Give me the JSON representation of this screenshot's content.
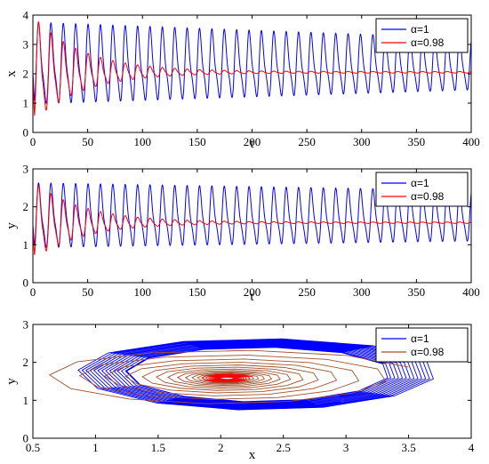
{
  "chart_data": [
    {
      "type": "line",
      "xlabel": "t",
      "ylabel": "x",
      "xlim": [
        0,
        400
      ],
      "ylim": [
        0,
        4
      ],
      "xticks": [
        0,
        50,
        100,
        150,
        200,
        250,
        300,
        350,
        400
      ],
      "yticks": [
        0,
        1,
        2,
        3,
        4
      ],
      "xtick_labels": [
        "0",
        "50",
        "100",
        "150",
        "200",
        "250",
        "300",
        "350",
        "400"
      ],
      "ytick_labels": [
        "0",
        "1",
        "2",
        "3",
        "4"
      ],
      "legend_position": "top-right",
      "series": [
        {
          "name": "α=1",
          "color": "#0000ff",
          "model": "sustained-oscillation",
          "period": 11.3,
          "center": 2.27,
          "amplitude_start": 1.5,
          "amplitude_end": 0.95,
          "start_value": 2.0
        },
        {
          "name": "α=0.98",
          "color": "#ff0000",
          "model": "damped-oscillation",
          "period": 11.3,
          "center": 2.05,
          "amplitude_start": 1.95,
          "decay_time": 45,
          "residual_amplitude": 0.03,
          "start_value": 2.0
        }
      ]
    },
    {
      "type": "line",
      "xlabel": "t",
      "ylabel": "y",
      "xlim": [
        0,
        400
      ],
      "ylim": [
        0,
        3
      ],
      "xticks": [
        0,
        50,
        100,
        150,
        200,
        250,
        300,
        350,
        400
      ],
      "yticks": [
        0,
        1,
        2,
        3
      ],
      "xtick_labels": [
        "0",
        "50",
        "100",
        "150",
        "200",
        "250",
        "300",
        "350",
        "400"
      ],
      "ytick_labels": [
        "0",
        "1",
        "2",
        "3"
      ],
      "legend_position": "top-right",
      "series": [
        {
          "name": "α=1",
          "color": "#0000ff",
          "model": "sustained-oscillation",
          "period": 11.3,
          "center": 1.72,
          "amplitude_start": 0.92,
          "amplitude_end": 0.72,
          "start_value": 1.5
        },
        {
          "name": "α=0.98",
          "color": "#ff0000",
          "model": "damped-oscillation",
          "period": 11.3,
          "center": 1.58,
          "amplitude_start": 1.12,
          "decay_time": 45,
          "residual_amplitude": 0.02,
          "start_value": 1.5
        }
      ]
    },
    {
      "type": "line",
      "xlabel": "x",
      "ylabel": "y",
      "xlim": [
        0.5,
        4
      ],
      "ylim": [
        0,
        3
      ],
      "xticks": [
        0.5,
        1,
        1.5,
        2,
        2.5,
        3,
        3.5,
        4
      ],
      "yticks": [
        0,
        1,
        2,
        3
      ],
      "xtick_labels": [
        "0.5",
        "1",
        "1.5",
        "2",
        "2.5",
        "3",
        "3.5",
        "4"
      ],
      "ytick_labels": [
        "0",
        "1",
        "2",
        "3"
      ],
      "legend_position": "top-right",
      "series": [
        {
          "name": "α=1",
          "color": "#0000ff",
          "model": "phase-limit-cycle",
          "center": [
            2.3,
            1.68
          ],
          "rx_start": 1.45,
          "rx_end": 1.05,
          "ry_start": 0.95,
          "ry_end": 0.72,
          "loops": 28
        },
        {
          "name": "α=0.98",
          "color": "#a0522d",
          "inner_color": "#ff0000",
          "model": "phase-spiral",
          "center": [
            2.05,
            1.58
          ],
          "rx_start": 1.5,
          "ry_start": 0.75,
          "loops": 22
        }
      ]
    }
  ]
}
